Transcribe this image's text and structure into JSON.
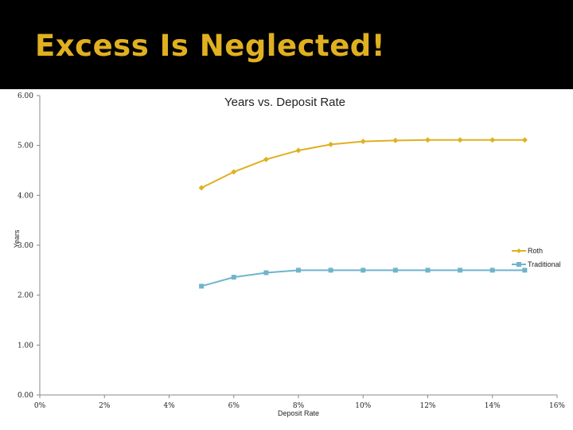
{
  "slide": {
    "title": "Excess Is Neglected!"
  },
  "chart_data": {
    "type": "line",
    "title": "Years vs. Deposit Rate",
    "xlabel": "Deposit Rate",
    "ylabel": "Years",
    "xlim": [
      0,
      0.16
    ],
    "ylim": [
      0,
      6
    ],
    "x_ticks": [
      "0%",
      "2%",
      "4%",
      "6%",
      "8%",
      "10%",
      "12%",
      "14%",
      "16%"
    ],
    "y_ticks": [
      "0.00",
      "1.00",
      "2.00",
      "3.00",
      "4.00",
      "5.00",
      "6.00"
    ],
    "legend": "right",
    "grid": false,
    "x": [
      0.05,
      0.06,
      0.07,
      0.08,
      0.09,
      0.1,
      0.11,
      0.12,
      0.13,
      0.14,
      0.15
    ],
    "series": [
      {
        "name": "Roth",
        "marker": "diamond",
        "color": "#e0b020",
        "values": [
          4.15,
          4.47,
          4.72,
          4.9,
          5.02,
          5.08,
          5.1,
          5.11,
          5.11,
          5.11,
          5.11
        ]
      },
      {
        "name": "Traditional",
        "marker": "square",
        "color": "#6fb4cc",
        "values": [
          2.18,
          2.36,
          2.45,
          2.5,
          2.5,
          2.5,
          2.5,
          2.5,
          2.5,
          2.5,
          2.5
        ]
      }
    ]
  }
}
